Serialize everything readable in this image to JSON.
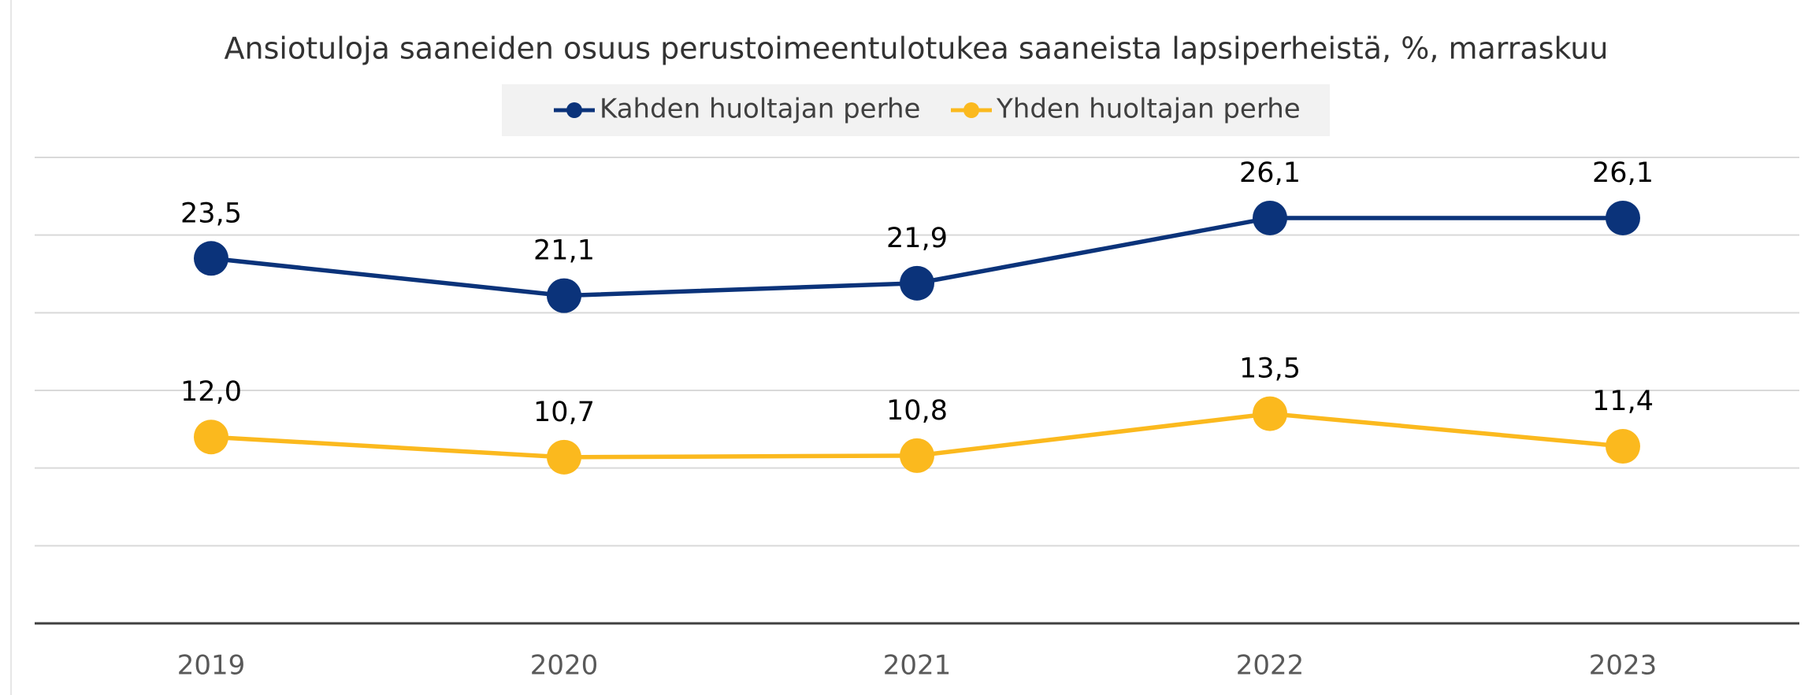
{
  "chart_data": {
    "type": "line",
    "title": "Ansiotuloja saaneiden osuus perustoimeentulotukea saaneista lapsiperheistä, %, marraskuu",
    "categories": [
      "2019",
      "2020",
      "2021",
      "2022",
      "2023"
    ],
    "series": [
      {
        "name": "Kahden huoltajan perhe",
        "color": "#0b337a",
        "values": [
          23.5,
          21.1,
          21.9,
          26.1,
          26.1
        ],
        "value_labels": [
          "23,5",
          "21,1",
          "21,9",
          "26,1",
          "26,1"
        ]
      },
      {
        "name": "Yhden huoltajan perhe",
        "color": "#fbb91e",
        "values": [
          12.0,
          10.7,
          10.8,
          13.5,
          11.4
        ],
        "value_labels": [
          "12,0",
          "10,7",
          "10,8",
          "13,5",
          "11,4"
        ]
      }
    ],
    "ylim": [
      0,
      30
    ],
    "yticks": [
      0,
      5,
      10,
      15,
      20,
      25,
      30
    ],
    "grid": true,
    "legend": "top"
  }
}
